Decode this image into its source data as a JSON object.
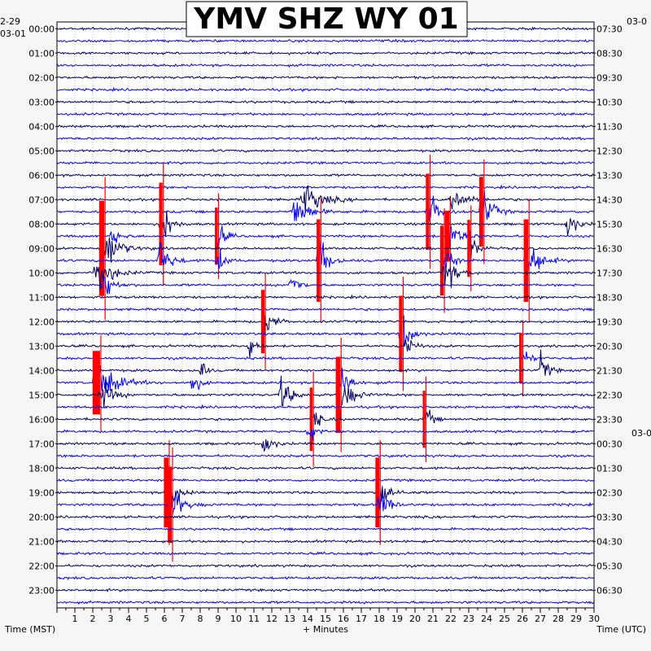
{
  "chart_data": {
    "type": "line",
    "title": "YMV SHZ WY 01",
    "xlabel": "+ Minutes",
    "left_axis_label": "Time (MST)",
    "right_axis_label": "Time (UTC)",
    "x_ticks": [
      "1",
      "2",
      "3",
      "4",
      "5",
      "6",
      "7",
      "8",
      "9",
      "10",
      "11",
      "12",
      "13",
      "14",
      "15",
      "16",
      "17",
      "18",
      "19",
      "20",
      "21",
      "22",
      "23",
      "24",
      "25",
      "26",
      "27",
      "28",
      "29",
      "30"
    ],
    "left_date_top": "2-29",
    "left_date": "03-01",
    "right_date_top": "03-0",
    "right_date_mid": "03-0",
    "left_hours": [
      "00:00",
      "01:00",
      "02:00",
      "03:00",
      "04:00",
      "05:00",
      "06:00",
      "07:00",
      "08:00",
      "09:00",
      "10:00",
      "11:00",
      "12:00",
      "13:00",
      "14:00",
      "15:00",
      "16:00",
      "17:00",
      "18:00",
      "19:00",
      "20:00",
      "21:00",
      "22:00",
      "23:00"
    ],
    "right_hours": [
      "07:30",
      "08:30",
      "09:30",
      "10:30",
      "11:30",
      "12:30",
      "13:30",
      "14:30",
      "15:30",
      "16:30",
      "17:30",
      "18:30",
      "19:30",
      "20:30",
      "21:30",
      "22:30",
      "23:30",
      "00:30",
      "01:30",
      "02:30",
      "03:30",
      "04:30",
      "05:30",
      "06:30"
    ],
    "xlim": [
      0,
      30
    ],
    "trace_colors": [
      "#000066",
      "#0000ff"
    ],
    "clip_color": "#ff0000",
    "events": [
      {
        "row": 16,
        "minute": 5.8,
        "amp": 2.6,
        "clip": true,
        "spread": 0.6
      },
      {
        "row": 19,
        "minute": 5.7,
        "amp": 2.0,
        "clip": false,
        "spread": 0.7
      },
      {
        "row": 18,
        "minute": 2.5,
        "amp": 3.0,
        "clip": true,
        "spread": 0.9
      },
      {
        "row": 20,
        "minute": 2.2,
        "amp": 2.2,
        "clip": false,
        "spread": 0.9
      },
      {
        "row": 21,
        "minute": 2.6,
        "amp": 1.6,
        "clip": false,
        "spread": 0.6
      },
      {
        "row": 17,
        "minute": 8.9,
        "amp": 1.8,
        "clip": true,
        "spread": 0.5
      },
      {
        "row": 19,
        "minute": 8.9,
        "amp": 1.4,
        "clip": false,
        "spread": 0.5
      },
      {
        "row": 15,
        "minute": 13.2,
        "amp": 1.6,
        "clip": false,
        "spread": 1.0
      },
      {
        "row": 19,
        "minute": 14.6,
        "amp": 2.6,
        "clip": true,
        "spread": 0.6
      },
      {
        "row": 21,
        "minute": 13.0,
        "amp": 1.6,
        "clip": false,
        "spread": 0.5
      },
      {
        "row": 15,
        "minute": 20.7,
        "amp": 2.4,
        "clip": true,
        "spread": 0.6
      },
      {
        "row": 17,
        "minute": 21.8,
        "amp": 1.6,
        "clip": true,
        "spread": 0.8
      },
      {
        "row": 19,
        "minute": 21.5,
        "amp": 2.2,
        "clip": true,
        "spread": 0.6
      },
      {
        "row": 20,
        "minute": 21.6,
        "amp": 2.0,
        "clip": false,
        "spread": 0.7
      },
      {
        "row": 15,
        "minute": 23.7,
        "amp": 2.2,
        "clip": true,
        "spread": 0.7
      },
      {
        "row": 18,
        "minute": 23.0,
        "amp": 1.8,
        "clip": true,
        "spread": 0.5
      },
      {
        "row": 16,
        "minute": 28.5,
        "amp": 1.4,
        "clip": false,
        "spread": 0.6
      },
      {
        "row": 19,
        "minute": 26.2,
        "amp": 2.6,
        "clip": true,
        "spread": 0.8
      },
      {
        "row": 24,
        "minute": 11.5,
        "amp": 2.0,
        "clip": true,
        "spread": 0.6
      },
      {
        "row": 26,
        "minute": 10.7,
        "amp": 1.6,
        "clip": false,
        "spread": 0.4
      },
      {
        "row": 25,
        "minute": 19.2,
        "amp": 2.4,
        "clip": true,
        "spread": 0.6
      },
      {
        "row": 26,
        "minute": 19.4,
        "amp": 1.6,
        "clip": false,
        "spread": 0.5
      },
      {
        "row": 27,
        "minute": 25.9,
        "amp": 1.6,
        "clip": true,
        "spread": 0.5
      },
      {
        "row": 28,
        "minute": 27.0,
        "amp": 1.6,
        "clip": false,
        "spread": 0.5
      },
      {
        "row": 29,
        "minute": 2.2,
        "amp": 2.0,
        "clip": true,
        "spread": 1.3
      },
      {
        "row": 30,
        "minute": 2.4,
        "amp": 1.4,
        "clip": false,
        "spread": 0.8
      },
      {
        "row": 29,
        "minute": 7.5,
        "amp": 1.4,
        "clip": false,
        "spread": 0.5
      },
      {
        "row": 28,
        "minute": 8.0,
        "amp": 1.6,
        "clip": false,
        "spread": 0.3
      },
      {
        "row": 30,
        "minute": 12.5,
        "amp": 1.6,
        "clip": false,
        "spread": 0.7
      },
      {
        "row": 30,
        "minute": 15.7,
        "amp": 2.4,
        "clip": true,
        "spread": 0.8
      },
      {
        "row": 29,
        "minute": 15.9,
        "amp": 1.8,
        "clip": false,
        "spread": 0.6
      },
      {
        "row": 32,
        "minute": 14.2,
        "amp": 2.0,
        "clip": true,
        "spread": 0.5
      },
      {
        "row": 33,
        "minute": 14.0,
        "amp": 1.6,
        "clip": false,
        "spread": 0.4
      },
      {
        "row": 32,
        "minute": 20.5,
        "amp": 1.8,
        "clip": true,
        "spread": 0.4
      },
      {
        "row": 38,
        "minute": 6.1,
        "amp": 2.2,
        "clip": true,
        "spread": 0.8
      },
      {
        "row": 39,
        "minute": 6.3,
        "amp": 2.4,
        "clip": true,
        "spread": 0.7
      },
      {
        "row": 38,
        "minute": 17.9,
        "amp": 2.2,
        "clip": true,
        "spread": 0.7
      },
      {
        "row": 39,
        "minute": 18.0,
        "amp": 1.8,
        "clip": false,
        "spread": 0.6
      },
      {
        "row": 14,
        "minute": 13.8,
        "amp": 1.4,
        "clip": false,
        "spread": 1.2
      },
      {
        "row": 14,
        "minute": 22.0,
        "amp": 1.2,
        "clip": false,
        "spread": 1.0
      },
      {
        "row": 17,
        "minute": 3.0,
        "amp": 1.2,
        "clip": false,
        "spread": 0.5
      },
      {
        "row": 34,
        "minute": 11.5,
        "amp": 1.2,
        "clip": false,
        "spread": 0.6
      }
    ]
  }
}
